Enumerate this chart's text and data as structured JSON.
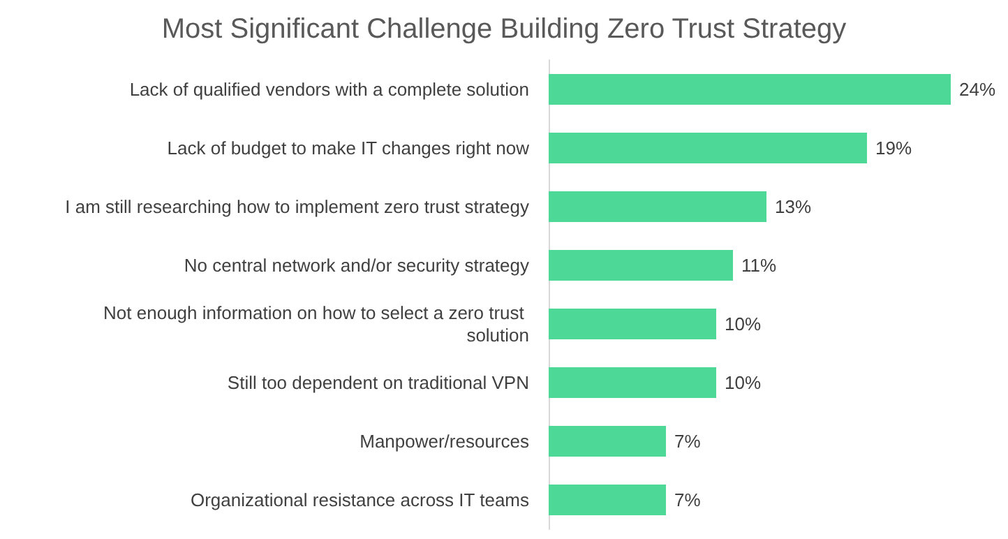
{
  "chart_data": {
    "type": "bar",
    "orientation": "horizontal",
    "title": "Most Significant Challenge Building Zero Trust Strategy",
    "categories": [
      "Lack of qualified vendors with a complete solution",
      "Lack of budget to make IT changes right now",
      "I am still researching how to implement zero trust strategy",
      "No central network and/or security strategy",
      "Not enough information on how to select a zero trust solution",
      "Still too dependent on traditional VPN",
      "Manpower/resources",
      "Organizational resistance across IT teams"
    ],
    "values": [
      24,
      19,
      13,
      11,
      10,
      10,
      7,
      7
    ],
    "value_labels": [
      "24%",
      "19%",
      "13%",
      "11%",
      "10%",
      "10%",
      "7%",
      "7%"
    ],
    "color": "#4dd898"
  }
}
